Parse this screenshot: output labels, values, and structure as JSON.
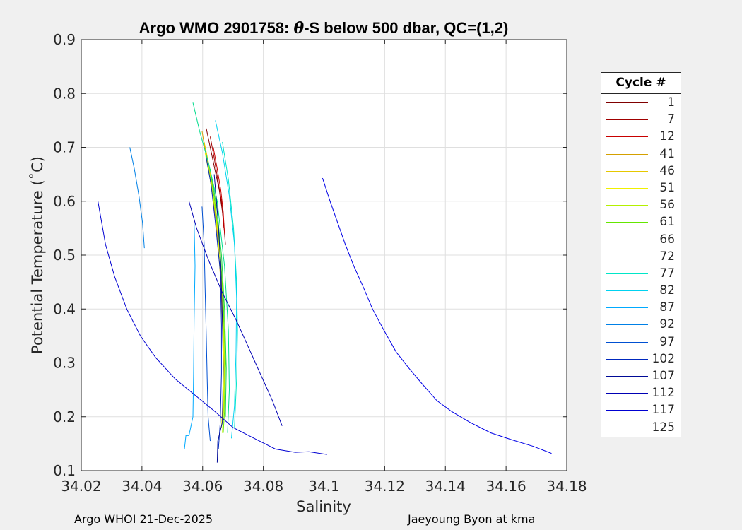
{
  "chart_data": {
    "type": "line",
    "title_prefix": "Argo WMO 2901758: ",
    "title_symbol": "θ",
    "title_suffix": "-S below 500 dbar,  QC=(1,2)",
    "xlabel": "Salinity",
    "ylabel": "Potential Temperature (˚C)",
    "xlim": [
      34.02,
      34.18
    ],
    "ylim": [
      0.1,
      0.9
    ],
    "xticks": [
      34.02,
      34.04,
      34.06,
      34.08,
      34.1,
      34.12,
      34.14,
      34.16,
      34.18
    ],
    "xtick_labels": [
      "34.02",
      "34.04",
      "34.06",
      "34.08",
      "34.1",
      "34.12",
      "34.14",
      "34.16",
      "34.18"
    ],
    "yticks": [
      0.1,
      0.2,
      0.3,
      0.4,
      0.5,
      0.6,
      0.7,
      0.8,
      0.9
    ],
    "ytick_labels": [
      "0.1",
      "0.2",
      "0.3",
      "0.4",
      "0.5",
      "0.6",
      "0.7",
      "0.8",
      "0.9"
    ],
    "grid": true,
    "legend_title": "Cycle #",
    "legend_position": "outside-right",
    "series": [
      {
        "name": "1",
        "color": "#800000",
        "points": [
          [
            34.0612,
            0.735
          ],
          [
            34.0625,
            0.7
          ],
          [
            34.064,
            0.66
          ],
          [
            34.0655,
            0.62
          ],
          [
            34.0668,
            0.57
          ],
          [
            34.0675,
            0.52
          ]
        ]
      },
      {
        "name": "7",
        "color": "#a00000",
        "points": [
          [
            34.0625,
            0.72
          ],
          [
            34.0638,
            0.68
          ],
          [
            34.065,
            0.64
          ],
          [
            34.0662,
            0.6
          ],
          [
            34.067,
            0.55
          ]
        ]
      },
      {
        "name": "12",
        "color": "#c80000",
        "points": [
          [
            34.0635,
            0.7
          ],
          [
            34.0648,
            0.66
          ],
          [
            34.066,
            0.62
          ],
          [
            34.0668,
            0.58
          ],
          [
            34.0672,
            0.54
          ]
        ]
      },
      {
        "name": "41",
        "color": "#d4a000",
        "points": [
          [
            34.0598,
            0.73
          ],
          [
            34.061,
            0.69
          ],
          [
            34.0625,
            0.64
          ],
          [
            34.0645,
            0.56
          ],
          [
            34.066,
            0.45
          ],
          [
            34.0668,
            0.33
          ],
          [
            34.0668,
            0.24
          ],
          [
            34.0665,
            0.19
          ]
        ]
      },
      {
        "name": "46",
        "color": "#e6c800",
        "points": [
          [
            34.0605,
            0.71
          ],
          [
            34.062,
            0.67
          ],
          [
            34.064,
            0.6
          ],
          [
            34.0658,
            0.5
          ],
          [
            34.0668,
            0.38
          ],
          [
            34.0672,
            0.27
          ],
          [
            34.0668,
            0.2
          ]
        ]
      },
      {
        "name": "51",
        "color": "#f0f000",
        "points": [
          [
            34.0608,
            0.69
          ],
          [
            34.0625,
            0.64
          ],
          [
            34.0645,
            0.57
          ],
          [
            34.0662,
            0.46
          ],
          [
            34.067,
            0.34
          ],
          [
            34.0668,
            0.24
          ],
          [
            34.0662,
            0.18
          ]
        ]
      },
      {
        "name": "56",
        "color": "#b4f000",
        "points": [
          [
            34.0615,
            0.68
          ],
          [
            34.0632,
            0.62
          ],
          [
            34.065,
            0.55
          ],
          [
            34.0665,
            0.44
          ],
          [
            34.0672,
            0.31
          ],
          [
            34.067,
            0.22
          ],
          [
            34.0665,
            0.17
          ]
        ]
      },
      {
        "name": "61",
        "color": "#64e600",
        "points": [
          [
            34.0625,
            0.66
          ],
          [
            34.064,
            0.6
          ],
          [
            34.0655,
            0.53
          ],
          [
            34.0668,
            0.42
          ],
          [
            34.0675,
            0.3
          ],
          [
            34.0672,
            0.21
          ],
          [
            34.0668,
            0.17
          ]
        ]
      },
      {
        "name": "66",
        "color": "#1ed246",
        "points": [
          [
            34.0632,
            0.64
          ],
          [
            34.0648,
            0.58
          ],
          [
            34.0662,
            0.5
          ],
          [
            34.0672,
            0.4
          ],
          [
            34.0678,
            0.29
          ],
          [
            34.0675,
            0.2
          ]
        ]
      },
      {
        "name": "72",
        "color": "#00dc8c",
        "points": [
          [
            34.0568,
            0.783
          ],
          [
            34.059,
            0.73
          ],
          [
            34.062,
            0.67
          ],
          [
            34.0648,
            0.6
          ],
          [
            34.0672,
            0.48
          ],
          [
            34.0685,
            0.36
          ],
          [
            34.0688,
            0.25
          ],
          [
            34.0682,
            0.17
          ]
        ]
      },
      {
        "name": "77",
        "color": "#00e6c8",
        "points": [
          [
            34.0665,
            0.71
          ],
          [
            34.0685,
            0.64
          ],
          [
            34.0702,
            0.55
          ],
          [
            34.0712,
            0.45
          ],
          [
            34.0715,
            0.36
          ],
          [
            34.0712,
            0.27
          ],
          [
            34.0705,
            0.18
          ]
        ]
      },
      {
        "name": "82",
        "color": "#00d2f0",
        "points": [
          [
            34.0642,
            0.75
          ],
          [
            34.0665,
            0.69
          ],
          [
            34.0688,
            0.61
          ],
          [
            34.0705,
            0.52
          ],
          [
            34.0712,
            0.42
          ],
          [
            34.071,
            0.32
          ],
          [
            34.0705,
            0.22
          ],
          [
            34.0695,
            0.16
          ]
        ]
      },
      {
        "name": "87",
        "color": "#00aaff",
        "points": [
          [
            34.0572,
            0.56
          ],
          [
            34.0575,
            0.48
          ],
          [
            34.0572,
            0.38
          ],
          [
            34.057,
            0.28
          ],
          [
            34.0568,
            0.2
          ],
          [
            34.0555,
            0.165
          ],
          [
            34.0545,
            0.165
          ],
          [
            34.054,
            0.14
          ]
        ]
      },
      {
        "name": "92",
        "color": "#0080e6",
        "points": [
          [
            34.036,
            0.7
          ],
          [
            34.0375,
            0.66
          ],
          [
            34.039,
            0.61
          ],
          [
            34.0402,
            0.56
          ],
          [
            34.0408,
            0.513
          ]
        ]
      },
      {
        "name": "97",
        "color": "#0050d2",
        "points": [
          [
            34.0598,
            0.59
          ],
          [
            34.0605,
            0.52
          ],
          [
            34.0608,
            0.44
          ],
          [
            34.0612,
            0.35
          ],
          [
            34.0615,
            0.27
          ],
          [
            34.0618,
            0.2
          ],
          [
            34.0625,
            0.155
          ]
        ]
      },
      {
        "name": "102",
        "color": "#0028be",
        "points": [
          [
            34.0612,
            0.68
          ],
          [
            34.0628,
            0.63
          ],
          [
            34.0642,
            0.56
          ],
          [
            34.0658,
            0.47
          ],
          [
            34.0662,
            0.37
          ],
          [
            34.0662,
            0.28
          ],
          [
            34.0658,
            0.19
          ],
          [
            34.0652,
            0.14
          ]
        ]
      },
      {
        "name": "107",
        "color": "#000a96",
        "points": [
          [
            34.0638,
            0.65
          ],
          [
            34.065,
            0.57
          ],
          [
            34.066,
            0.48
          ],
          [
            34.0665,
            0.38
          ],
          [
            34.0668,
            0.29
          ],
          [
            34.0665,
            0.19
          ],
          [
            34.065,
            0.155
          ],
          [
            34.0648,
            0.115
          ]
        ]
      },
      {
        "name": "112",
        "color": "#0000b4",
        "points": [
          [
            34.0555,
            0.6
          ],
          [
            34.058,
            0.55
          ],
          [
            34.062,
            0.49
          ],
          [
            34.0665,
            0.43
          ],
          [
            34.071,
            0.38
          ],
          [
            34.075,
            0.33
          ],
          [
            34.079,
            0.28
          ],
          [
            34.083,
            0.23
          ],
          [
            34.0862,
            0.183
          ]
        ]
      },
      {
        "name": "117",
        "color": "#0000d2",
        "points": [
          [
            34.0255,
            0.6
          ],
          [
            34.028,
            0.52
          ],
          [
            34.031,
            0.46
          ],
          [
            34.035,
            0.4
          ],
          [
            34.0395,
            0.35
          ],
          [
            34.0445,
            0.31
          ],
          [
            34.051,
            0.27
          ],
          [
            34.0575,
            0.24
          ],
          [
            34.064,
            0.21
          ],
          [
            34.07,
            0.18
          ],
          [
            34.077,
            0.16
          ],
          [
            34.084,
            0.14
          ],
          [
            34.0905,
            0.134
          ],
          [
            34.095,
            0.135
          ],
          [
            34.101,
            0.13
          ]
        ]
      },
      {
        "name": "125",
        "color": "#0000e6",
        "points": [
          [
            34.0995,
            0.643
          ],
          [
            34.102,
            0.6
          ],
          [
            34.1045,
            0.56
          ],
          [
            34.107,
            0.52
          ],
          [
            34.1098,
            0.48
          ],
          [
            34.113,
            0.44
          ],
          [
            34.116,
            0.4
          ],
          [
            34.1198,
            0.36
          ],
          [
            34.1238,
            0.32
          ],
          [
            34.128,
            0.29
          ],
          [
            34.1325,
            0.26
          ],
          [
            34.1372,
            0.23
          ],
          [
            34.142,
            0.21
          ],
          [
            34.148,
            0.19
          ],
          [
            34.155,
            0.17
          ],
          [
            34.162,
            0.157
          ],
          [
            34.169,
            0.145
          ],
          [
            34.175,
            0.132
          ]
        ]
      }
    ]
  },
  "footer": {
    "left": "Argo WHOI 21-Dec-2025",
    "right": "Jaeyoung Byon at kma"
  }
}
